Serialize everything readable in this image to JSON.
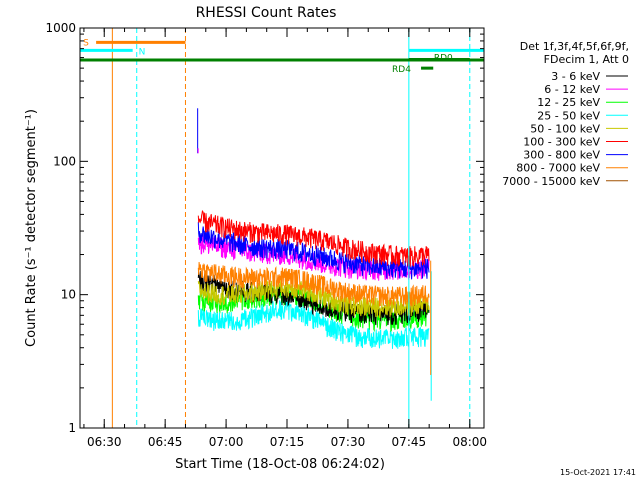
{
  "chart_data": {
    "type": "line",
    "title": "RHESSI Count Rates",
    "xlabel": "Start Time (18-Oct-08 06:24:02)",
    "ylabel": "Count Rate (s⁻¹ detector segment⁻¹)",
    "y_scale": "log",
    "xlim": [
      "06:24:02",
      "08:03:30"
    ],
    "ylim": [
      1,
      1000
    ],
    "x_ticks": [
      "06:30",
      "06:45",
      "07:00",
      "07:15",
      "07:30",
      "07:45",
      "08:00"
    ],
    "y_ticks": [
      "1",
      "10",
      "100",
      "1000"
    ],
    "legend_position": "right",
    "legend_header": [
      "Det 1f,3f,4f,5f,6f,9f,",
      "FDecim 1, Att 0"
    ],
    "series": [
      {
        "name": "3 - 6 keV",
        "color": "#000000",
        "x": [
          "06:53:10",
          "06:55",
          "07:00",
          "07:05",
          "07:10",
          "07:15",
          "07:20",
          "07:25",
          "07:30",
          "07:35",
          "07:40",
          "07:45",
          "07:48",
          "07:50"
        ],
        "values": [
          13,
          12.5,
          11.5,
          10.5,
          10.5,
          10,
          8.8,
          8,
          7.5,
          7.2,
          7.2,
          7.3,
          7.6,
          7.8
        ]
      },
      {
        "name": "6 - 12 keV",
        "color": "#ff00ff",
        "x": [
          "06:53:10",
          "06:55",
          "07:00",
          "07:05",
          "07:10",
          "07:15",
          "07:20",
          "07:25",
          "07:30",
          "07:35",
          "07:40",
          "07:45",
          "07:48",
          "07:50"
        ],
        "values": [
          25,
          24,
          22.5,
          21,
          20.5,
          20,
          18.5,
          17,
          16,
          15.5,
          15.5,
          15.5,
          16,
          16.5
        ]
      },
      {
        "name": "12 - 25 keV",
        "color": "#00ff00",
        "x": [
          "06:53:10",
          "06:55",
          "07:00",
          "07:05",
          "07:10",
          "07:15",
          "07:20",
          "07:25",
          "07:30",
          "07:35",
          "07:40",
          "07:45",
          "07:48",
          "07:50"
        ],
        "values": [
          9.5,
          9,
          8.8,
          9.2,
          10,
          10.3,
          9.5,
          8,
          7,
          6.6,
          6.5,
          6.6,
          6.8,
          7.2
        ]
      },
      {
        "name": "25 - 50 keV",
        "color": "#00ffff",
        "x": [
          "06:53:10",
          "06:55",
          "07:00",
          "07:05",
          "07:10",
          "07:15",
          "07:20",
          "07:25",
          "07:30",
          "07:35",
          "07:40",
          "07:45",
          "07:48",
          "07:50"
        ],
        "values": [
          6.8,
          6.5,
          6.3,
          6.6,
          7.5,
          7.8,
          7,
          5.8,
          5,
          4.8,
          4.7,
          4.8,
          4.9,
          5
        ]
      },
      {
        "name": "50 - 100 keV",
        "color": "#c8c800",
        "x": [
          "06:53:10",
          "06:55",
          "07:00",
          "07:05",
          "07:10",
          "07:15",
          "07:20",
          "07:25",
          "07:30",
          "07:35",
          "07:40",
          "07:45",
          "07:48",
          "07:50"
        ],
        "values": [
          11,
          10.5,
          10,
          10.2,
          11,
          11.5,
          10.8,
          9.4,
          8.5,
          8.2,
          8.2,
          8.3,
          8.5,
          8.8
        ]
      },
      {
        "name": "100 - 300 keV",
        "color": "#ff0000",
        "x": [
          "06:53:10",
          "06:55",
          "07:00",
          "07:05",
          "07:10",
          "07:15",
          "07:20",
          "07:25",
          "07:30",
          "07:35",
          "07:40",
          "07:45",
          "07:48",
          "07:50"
        ],
        "values": [
          37,
          35,
          32,
          30,
          29,
          28.5,
          27,
          25,
          22.5,
          21,
          20,
          19.5,
          19.8,
          20
        ]
      },
      {
        "name": "300 - 800 keV",
        "color": "#0000ff",
        "x": [
          "06:53:10",
          "06:55",
          "07:00",
          "07:05",
          "07:10",
          "07:15",
          "07:20",
          "07:25",
          "07:30",
          "07:35",
          "07:40",
          "07:45",
          "07:48",
          "07:50"
        ],
        "values": [
          30,
          28,
          25.5,
          23.5,
          22.5,
          22,
          20.5,
          19,
          17.5,
          16.5,
          16,
          15.8,
          15.8,
          16
        ]
      },
      {
        "name": "800 - 7000 keV",
        "color": "#ff8000",
        "x": [
          "06:53:10",
          "06:55",
          "07:00",
          "07:05",
          "07:10",
          "07:15",
          "07:20",
          "07:25",
          "07:30",
          "07:35",
          "07:40",
          "07:45",
          "07:48",
          "07:50"
        ],
        "values": [
          16,
          15,
          14,
          13.5,
          13.5,
          13.7,
          12.8,
          11.5,
          10.5,
          10,
          9.8,
          9.8,
          10,
          10.5
        ]
      },
      {
        "name": "7000 - 15000 keV",
        "color": "#a05000",
        "x": [],
        "values": []
      }
    ],
    "attenuator_bars": [
      {
        "label": "S",
        "color": "#ff8000",
        "x_start": "06:28",
        "x_end": "06:50",
        "y": 780
      },
      {
        "label": "N",
        "color": "#00ffff",
        "x_start": "06:24:02",
        "x_end": "06:37",
        "y": 680
      },
      {
        "label": "",
        "color": "#00ffff",
        "x_start": "07:45",
        "x_end": "08:03:30",
        "y": 680
      },
      {
        "label": "",
        "color": "#008000",
        "x_start": "06:24:02",
        "x_end": "08:03:30",
        "y": 575
      },
      {
        "label": "RD0",
        "color": "#008000",
        "x_start": "07:45",
        "x_end": "08:00",
        "y": 580
      },
      {
        "label": "RD4",
        "color": "#008000",
        "x_start": "07:48",
        "x_end": "07:51",
        "y": 500
      }
    ],
    "vertical_markers": [
      {
        "x": "06:32",
        "color": "#ff8000",
        "style": "solid"
      },
      {
        "x": "06:38",
        "color": "#00ffff",
        "style": "dashed"
      },
      {
        "x": "06:50",
        "color": "#ff8000",
        "style": "dashed"
      },
      {
        "x": "07:45",
        "color": "#00ffff",
        "style": "solid"
      },
      {
        "x": "08:00",
        "color": "#00ffff",
        "style": "dashed"
      }
    ],
    "initial_spike": {
      "x": "06:53:00",
      "values": [
        115,
        250
      ]
    }
  },
  "footer": {
    "timestamp": "15-Oct-2021 17:41"
  }
}
